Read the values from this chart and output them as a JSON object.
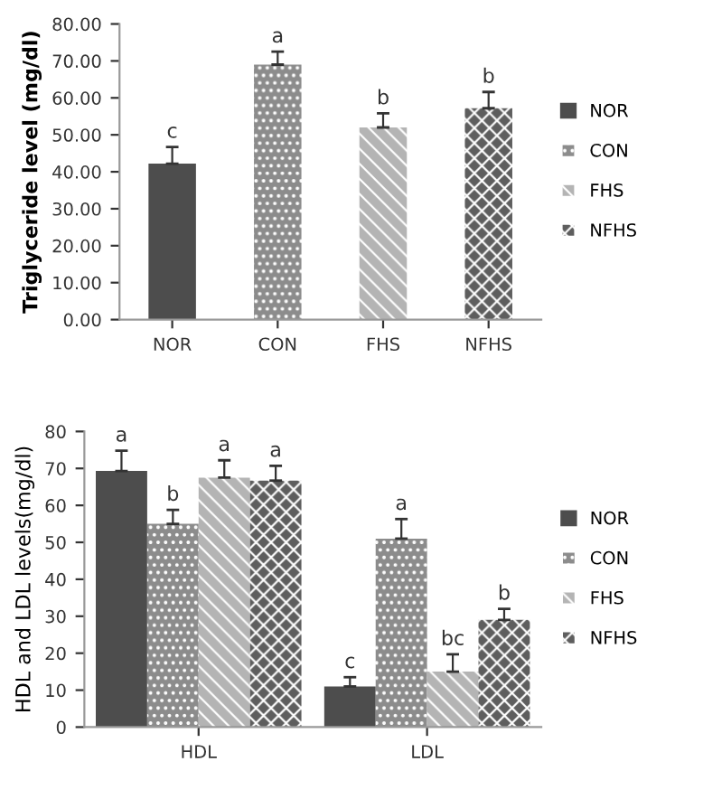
{
  "chart_data": [
    {
      "type": "bar",
      "ylabel": "Triglyceride level (mg/dl)",
      "categories": [
        "NOR",
        "CON",
        "FHS",
        "NFHS"
      ],
      "stacked": true,
      "series": [
        {
          "name": "NOR",
          "color": "#4d4d4d",
          "values": [
            42.2,
            null,
            null,
            null
          ],
          "errors": [
            4.5,
            null,
            null,
            null
          ]
        },
        {
          "name": "CON",
          "color": "#8c8c8c",
          "values": [
            null,
            69.0,
            null,
            null
          ],
          "errors": [
            null,
            3.5,
            null,
            null
          ]
        },
        {
          "name": "FHS",
          "color": "#b4b4b4",
          "values": [
            null,
            null,
            52.0,
            null
          ],
          "errors": [
            null,
            null,
            3.8,
            null
          ]
        },
        {
          "name": "NFHS",
          "color": "#5e5e5e",
          "values": [
            null,
            null,
            null,
            57.2
          ],
          "errors": [
            null,
            null,
            null,
            4.4
          ]
        }
      ],
      "ylim": [
        0,
        80
      ],
      "yticks": [
        {
          "value": 0,
          "label": "0.00"
        },
        {
          "value": 10,
          "label": "10.00"
        },
        {
          "value": 20,
          "label": "20.00"
        },
        {
          "value": 30,
          "label": "30.00"
        },
        {
          "value": 40,
          "label": "40.00"
        },
        {
          "value": 50,
          "label": "50.00"
        },
        {
          "value": 60,
          "label": "60.00"
        },
        {
          "value": 70,
          "label": "70.00"
        },
        {
          "value": 80,
          "label": "80.00"
        }
      ],
      "annotations": [
        "c",
        "a",
        "b",
        "b"
      ],
      "legend": "right",
      "grid": false
    },
    {
      "type": "bar",
      "ylabel": "HDL and LDL levels(mg/dl)",
      "categories": [
        "HDL",
        "LDL"
      ],
      "series": [
        {
          "name": "NOR",
          "color": "#4d4d4d",
          "values": [
            69.3,
            11.0
          ],
          "errors": [
            5.5,
            2.5
          ]
        },
        {
          "name": "CON",
          "color": "#8c8c8c",
          "values": [
            55.0,
            51.0
          ],
          "errors": [
            3.8,
            5.3
          ]
        },
        {
          "name": "FHS",
          "color": "#b4b4b4",
          "values": [
            67.5,
            15.0
          ],
          "errors": [
            4.7,
            4.7
          ]
        },
        {
          "name": "NFHS",
          "color": "#5e5e5e",
          "values": [
            66.7,
            29.0
          ],
          "errors": [
            4.0,
            3.0
          ]
        }
      ],
      "ylim": [
        0,
        80
      ],
      "yticks": [
        0,
        10,
        20,
        30,
        40,
        50,
        60,
        70,
        80
      ],
      "annotations": [
        "a",
        "c",
        "b",
        "a",
        "a",
        "bc",
        "a",
        "b"
      ],
      "legend": "right",
      "grid": false
    }
  ]
}
